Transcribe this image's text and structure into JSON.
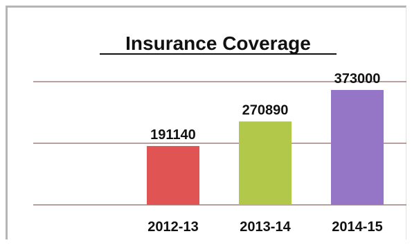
{
  "chart_data": {
    "type": "bar",
    "title": "Insurance Coverage",
    "categories": [
      "2012-13",
      "2013-14",
      "2014-15"
    ],
    "values": [
      191140,
      270890,
      373000
    ],
    "value_labels": [
      "191140",
      "270890",
      "373000"
    ],
    "colors": [
      "#e05454",
      "#b2c84a",
      "#9575c6"
    ],
    "ylim": [
      0,
      400000
    ],
    "gridlines": [
      0,
      200000,
      400000
    ],
    "grid": true,
    "legend": "none",
    "xlabel": "",
    "ylabel": ""
  }
}
